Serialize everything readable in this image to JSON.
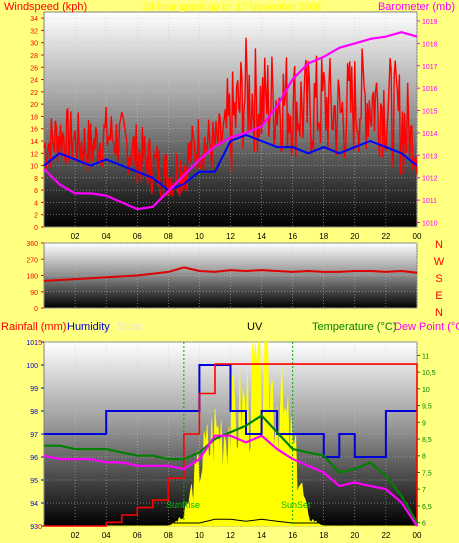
{
  "colors": {
    "background": "#ffff80",
    "wind": "#ff0000",
    "wind_avg": "#0000ff",
    "barometer": "#ff00ff",
    "direction": "#dd0000",
    "rainfall": "#ff0000",
    "humidity": "#0000dd",
    "solar": "#ffff00",
    "uv": "#000000",
    "temperature": "#008000",
    "dewpoint": "#ff00ff"
  },
  "chart_data": [
    {
      "type": "line",
      "title": "",
      "header_text": "24 hour graph up to: 17 November 2008",
      "left_label": "Windspeed (kph)",
      "right_label": "Barometer (mb)",
      "x_ticks": [
        "02",
        "04",
        "06",
        "08",
        "10",
        "12",
        "14",
        "16",
        "18",
        "20",
        "22",
        "00"
      ],
      "x": [
        0,
        1,
        2,
        3,
        4,
        5,
        6,
        7,
        8,
        9,
        10,
        11,
        12,
        13,
        14,
        15,
        16,
        17,
        18,
        19,
        20,
        21,
        22,
        23,
        24
      ],
      "y_left_ticks": [
        "0",
        "2",
        "4",
        "6",
        "8",
        "10",
        "12",
        "14",
        "16",
        "18",
        "20",
        "22",
        "24",
        "26",
        "28",
        "30",
        "32",
        "34"
      ],
      "y_right_ticks": [
        "1010",
        "1011",
        "1012",
        "1013",
        "1014",
        "1015",
        "1016",
        "1017",
        "1018",
        "1019"
      ],
      "ylim_left": [
        0,
        35
      ],
      "ylim_right": [
        1009.8,
        1019.4
      ],
      "series": [
        {
          "name": "Windspeed",
          "axis": "left",
          "values": [
            13,
            15,
            14,
            13,
            15,
            14,
            12,
            10,
            8,
            10,
            14,
            13,
            16,
            22,
            20,
            21,
            20,
            19,
            20,
            18,
            20,
            21,
            20,
            17,
            13
          ]
        },
        {
          "name": "",
          "axis": "left",
          "values": [
            10,
            12,
            11,
            10,
            11,
            10,
            9,
            8,
            6,
            7,
            9,
            9,
            14,
            15,
            14,
            13,
            13,
            12,
            13,
            12,
            13,
            14,
            13,
            12,
            10
          ]
        },
        {
          "name": "Barometer",
          "axis": "right",
          "values": [
            1012.4,
            1011.7,
            1011.3,
            1011.3,
            1011.2,
            1010.9,
            1010.6,
            1010.7,
            1011.4,
            1012.1,
            1012.8,
            1013.4,
            1013.8,
            1014.0,
            1014.3,
            1015.2,
            1016.4,
            1017.1,
            1017.4,
            1017.8,
            1018.0,
            1018.2,
            1018.3,
            1018.5,
            1018.3
          ]
        }
      ]
    },
    {
      "type": "line",
      "title": "",
      "x_ticks": [
        "02",
        "04",
        "06",
        "08",
        "10",
        "12",
        "14",
        "16",
        "18",
        "20",
        "22",
        "00"
      ],
      "x": [
        0,
        1,
        2,
        3,
        4,
        5,
        6,
        7,
        8,
        9,
        10,
        11,
        12,
        13,
        14,
        15,
        16,
        17,
        18,
        19,
        20,
        21,
        22,
        23,
        24
      ],
      "y_ticks": [
        "0",
        "90",
        "180",
        "270",
        "360"
      ],
      "ylim": [
        0,
        360
      ],
      "compass": [
        "N",
        "W",
        "S",
        "E",
        "N"
      ],
      "series": [
        {
          "name": "",
          "values": [
            150,
            155,
            160,
            165,
            170,
            175,
            180,
            190,
            200,
            225,
            205,
            200,
            210,
            205,
            210,
            205,
            200,
            205,
            200,
            200,
            205,
            205,
            200,
            205,
            195
          ]
        }
      ]
    },
    {
      "type": "line",
      "title": "",
      "labels": {
        "rainfall": "Rainfall (mm)",
        "humidity": "Humidity",
        "solar": "Solar",
        "uv": "UV",
        "temperature": "Temperature (°C)",
        "dewpoint": "Dew Point (°C)",
        "sunrise": "SunRise",
        "sunset": "SunSet"
      },
      "x_ticks": [
        "02",
        "04",
        "06",
        "08",
        "10",
        "12",
        "14",
        "16",
        "18",
        "20",
        "22",
        "00"
      ],
      "x": [
        0,
        1,
        2,
        3,
        4,
        5,
        6,
        7,
        8,
        9,
        10,
        11,
        12,
        13,
        14,
        15,
        16,
        17,
        18,
        19,
        20,
        21,
        22,
        23,
        24
      ],
      "y_humidity_ticks": [
        "93",
        "94",
        "95",
        "96",
        "97",
        "98",
        "99",
        "100",
        "101"
      ],
      "ylim_humidity": [
        93,
        101
      ],
      "y_rain_ticks": [
        "0",
        "5"
      ],
      "ylim_rain": [
        0,
        5
      ],
      "y_temp_ticks": [
        "6",
        "6,5",
        "7",
        "7,5",
        "8",
        "8,5",
        "9",
        "9,5",
        "10",
        "10,5",
        "11"
      ],
      "ylim_temp": [
        5.9,
        11.4
      ],
      "sunrise_hour": 9.0,
      "sunset_hour": 16.0,
      "series": [
        {
          "name": "Humidity",
          "axis": "humidity",
          "values": [
            97,
            97,
            97,
            97,
            98,
            98,
            98,
            98,
            98,
            98,
            100,
            100,
            98,
            97,
            98,
            97,
            97,
            97,
            96,
            97,
            96,
            96,
            98,
            98,
            98
          ]
        },
        {
          "name": "Rainfall",
          "axis": "rain",
          "values": [
            0,
            0,
            0,
            0,
            0.1,
            0.3,
            0.5,
            0.7,
            1.3,
            2.5,
            3.6,
            4.4,
            4.4,
            4.4,
            4.4,
            4.4,
            4.4,
            4.4,
            4.4,
            4.4,
            4.4,
            4.4,
            4.4,
            4.4,
            0
          ]
        },
        {
          "name": "Temperature",
          "axis": "temp",
          "values": [
            8.3,
            8.3,
            8.2,
            8.2,
            8.2,
            8.1,
            8.0,
            8.0,
            7.9,
            7.9,
            8.1,
            8.5,
            8.7,
            8.9,
            9.2,
            8.7,
            8.2,
            8.1,
            8.0,
            7.5,
            7.6,
            7.8,
            7.4,
            6.8,
            6.0
          ]
        },
        {
          "name": "Dew Point",
          "axis": "temp",
          "values": [
            8.0,
            7.9,
            7.9,
            7.9,
            7.8,
            7.8,
            7.7,
            7.7,
            7.7,
            7.6,
            7.9,
            8.6,
            8.6,
            8.4,
            8.6,
            8.2,
            7.9,
            7.7,
            7.5,
            7.1,
            7.2,
            7.1,
            7.0,
            6.6,
            5.9
          ]
        },
        {
          "name": "Solar",
          "axis": "relative",
          "values": [
            0,
            0,
            0,
            0,
            0,
            0,
            0,
            0,
            0,
            0.05,
            0.35,
            0.55,
            0.6,
            0.7,
            0.9,
            0.75,
            0.45,
            0.05,
            0,
            0,
            0,
            0,
            0,
            0,
            0
          ]
        },
        {
          "name": "UV",
          "axis": "relative",
          "values": [
            0,
            0,
            0,
            0,
            0,
            0,
            0,
            0,
            0,
            0,
            0,
            0.02,
            0.02,
            0.01,
            0.02,
            0.01,
            0,
            0,
            0,
            0,
            0,
            0,
            0,
            0,
            0
          ]
        }
      ]
    }
  ]
}
